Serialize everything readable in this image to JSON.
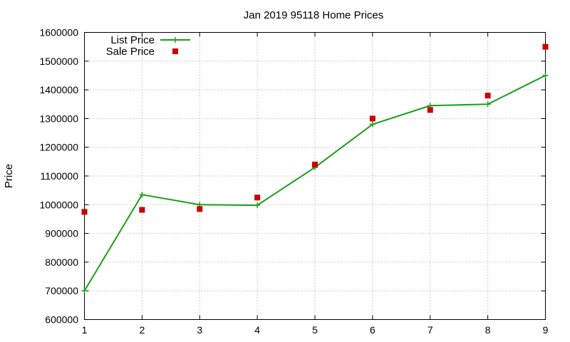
{
  "chart_data": {
    "type": "line",
    "title": "Jan 2019 95118 Home Prices",
    "xlabel": "",
    "ylabel": "Price",
    "x": [
      1,
      2,
      3,
      4,
      5,
      6,
      7,
      8,
      9
    ],
    "xlim": [
      1,
      9
    ],
    "ylim": [
      600000,
      1600000
    ],
    "y_ticks": [
      600000,
      700000,
      800000,
      900000,
      1000000,
      1100000,
      1200000,
      1300000,
      1400000,
      1500000,
      1600000
    ],
    "x_ticks": [
      1,
      2,
      3,
      4,
      5,
      6,
      7,
      8,
      9
    ],
    "grid": true,
    "legend_position": "top-left",
    "series": [
      {
        "name": "List Price",
        "style": "line-with-plus-markers",
        "color": "#1a9e1a",
        "values": [
          700000,
          1035000,
          1000000,
          998000,
          1130000,
          1280000,
          1345000,
          1350000,
          1450000
        ]
      },
      {
        "name": "Sale Price",
        "style": "square-markers",
        "color": "#cc0000",
        "values": [
          975000,
          982000,
          985000,
          1025000,
          1140000,
          1300000,
          1330000,
          1380000,
          1550000
        ]
      }
    ]
  }
}
